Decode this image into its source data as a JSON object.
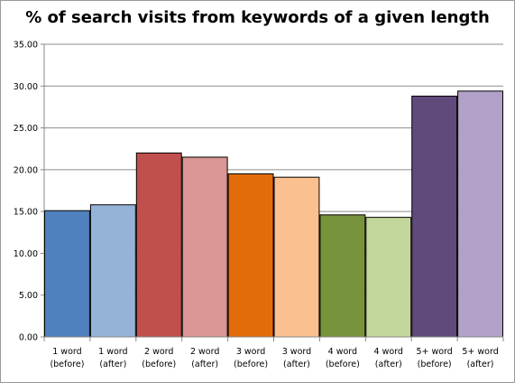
{
  "chart_data": {
    "type": "bar",
    "title": "% of search visits from keywords of a given length",
    "xlabel": "",
    "ylabel": "",
    "ylim": [
      0,
      35
    ],
    "y_ticks": [
      "0.00",
      "5.00",
      "10.00",
      "15.00",
      "20.00",
      "25.00",
      "30.00",
      "35.00"
    ],
    "grid": true,
    "legend": "none",
    "categories": [
      [
        "1 word",
        "(before)"
      ],
      [
        "1 word",
        "(after)"
      ],
      [
        "2 word",
        "(before)"
      ],
      [
        "2 word",
        "(after)"
      ],
      [
        "3 word",
        "(before)"
      ],
      [
        "3 word",
        "(after)"
      ],
      [
        "4 word",
        "(before)"
      ],
      [
        "4 word",
        "(after)"
      ],
      [
        "5+ word",
        "(before)"
      ],
      [
        "5+ word",
        "(after)"
      ]
    ],
    "values": [
      15.1,
      15.8,
      22.0,
      21.5,
      19.5,
      19.1,
      14.6,
      14.3,
      28.8,
      29.4
    ],
    "colors": [
      "#4f81bd",
      "#95b3d7",
      "#c0504d",
      "#d99694",
      "#e36c0a",
      "#fac08f",
      "#77933c",
      "#c3d69b",
      "#604a7b",
      "#b2a1c7"
    ]
  }
}
